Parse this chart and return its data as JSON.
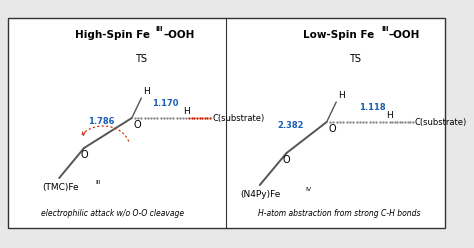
{
  "bg_color": "#e8e8e8",
  "box_facecolor": "white",
  "left_dist1": "1.786",
  "left_dist2": "1.170",
  "right_dist1": "2.382",
  "right_dist2": "1.118",
  "left_fe_label": "(TMC)Fe",
  "left_fe_super": "III",
  "right_fe_label": "(N4Py)Fe",
  "right_fe_super": "IV",
  "left_caption": "electrophilic attack w/o O-O cleavage",
  "right_caption": "H-atom abstraction from strong C-H bonds",
  "dist_color": "#1a5fb4",
  "red_color": "#cc2200",
  "gray_color": "#888888",
  "dark_gray": "#555555"
}
